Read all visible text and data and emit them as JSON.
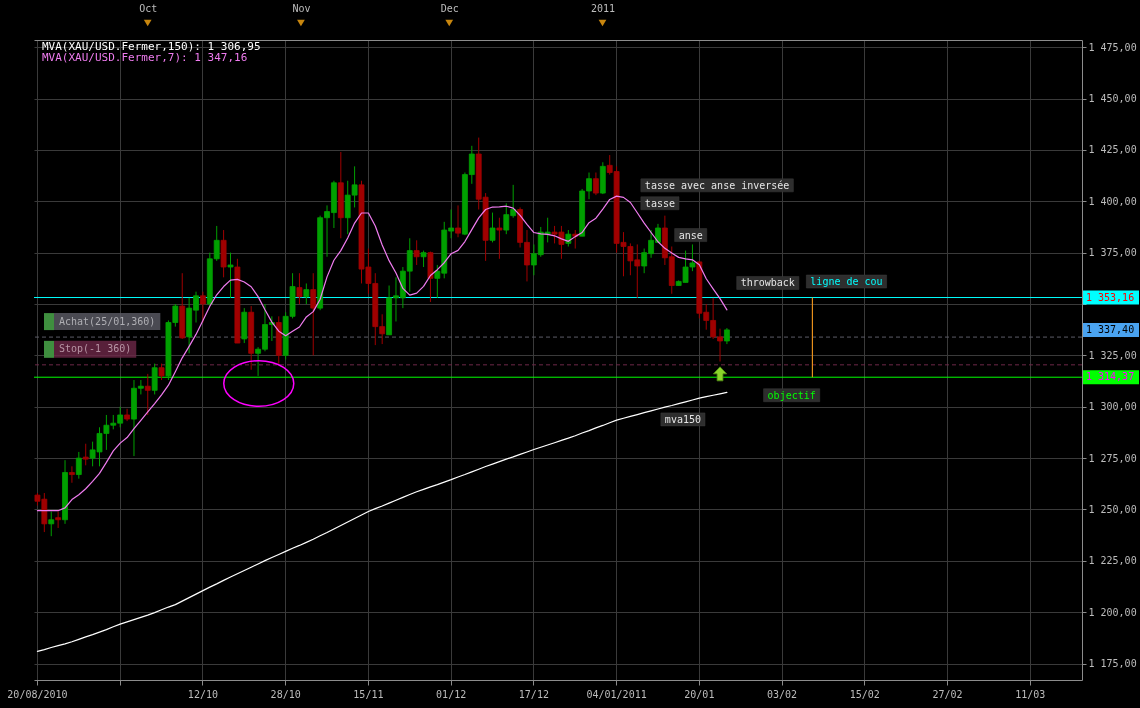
{
  "chart_data": {
    "type": "candlestick",
    "categories": [
      "20/08/2010",
      null,
      null,
      null,
      null,
      null,
      null,
      null,
      null,
      null,
      null,
      null,
      null,
      null,
      null,
      null,
      null,
      null,
      null,
      null,
      null,
      null,
      null,
      null,
      "12/10",
      null,
      null,
      null,
      null,
      null,
      null,
      null,
      null,
      null,
      null,
      null,
      "28/10",
      null,
      null,
      null,
      null,
      null,
      null,
      null,
      null,
      null,
      null,
      null,
      "15/11",
      null,
      null,
      null,
      null,
      null,
      null,
      null,
      null,
      null,
      null,
      null,
      "01/12",
      null,
      null,
      null,
      null,
      null,
      null,
      null,
      null,
      null,
      null,
      null,
      "17/12",
      null,
      null,
      null,
      null,
      null,
      null,
      null,
      null,
      null,
      null,
      null,
      "04/01/2011",
      null,
      null,
      null,
      null,
      null,
      null,
      null,
      null,
      null,
      null,
      null,
      "20/01",
      null,
      null,
      null,
      null,
      null,
      null,
      null,
      null,
      null,
      null,
      null,
      "03/02",
      null,
      null,
      null,
      null,
      null,
      null,
      null,
      null,
      null,
      null,
      null,
      "15/02",
      null,
      null,
      null,
      null,
      null,
      null,
      null,
      null,
      null,
      null,
      null,
      "27/02",
      null,
      null,
      null,
      null,
      null,
      null,
      null,
      null,
      null,
      null,
      null,
      "11/03",
      null,
      null,
      null,
      null,
      null,
      null,
      null
    ],
    "ohlc": [
      [
        1257,
        1258,
        1252,
        1254
      ],
      [
        1255,
        1258,
        1239,
        1243
      ],
      [
        1243,
        1249,
        1237,
        1245
      ],
      [
        1246,
        1249,
        1241,
        1245
      ],
      [
        1245,
        1274,
        1243,
        1268
      ],
      [
        1268,
        1271,
        1263,
        1267
      ],
      [
        1267,
        1278,
        1265,
        1275
      ],
      [
        1275.5,
        1282,
        1271.5,
        1274.5
      ],
      [
        1275,
        1283,
        1271,
        1279
      ],
      [
        1278,
        1290,
        1271,
        1287
      ],
      [
        1287,
        1296,
        1279,
        1291
      ],
      [
        1291,
        1296,
        1289,
        1292
      ],
      [
        1292,
        1300,
        1290,
        1296
      ],
      [
        1296,
        1299,
        1293,
        1294
      ],
      [
        1294,
        1313,
        1276,
        1309
      ],
      [
        1309,
        1313,
        1306,
        1310
      ],
      [
        1310,
        1316,
        1296,
        1308
      ],
      [
        1308,
        1321,
        1306,
        1319
      ],
      [
        1319,
        1321,
        1313,
        1315
      ],
      [
        1315,
        1342,
        1313,
        1341
      ],
      [
        1341,
        1350,
        1339,
        1349
      ],
      [
        1349,
        1365,
        1333,
        1333.5
      ],
      [
        1334,
        1353,
        1326,
        1348
      ],
      [
        1347,
        1356,
        1341,
        1354
      ],
      [
        1354,
        1356,
        1341,
        1350
      ],
      [
        1350,
        1375,
        1349,
        1372
      ],
      [
        1372,
        1388,
        1371,
        1381
      ],
      [
        1381,
        1386,
        1363,
        1368
      ],
      [
        1368,
        1375,
        1353,
        1369
      ],
      [
        1368,
        1372,
        1331,
        1331
      ],
      [
        1333,
        1348,
        1331,
        1346
      ],
      [
        1346,
        1349,
        1318,
        1326
      ],
      [
        1326,
        1329,
        1315,
        1328
      ],
      [
        1328,
        1350,
        1327,
        1340
      ],
      [
        1340,
        1344,
        1332,
        1341
      ],
      [
        1341,
        1344,
        1321,
        1325
      ],
      [
        1325,
        1346,
        1323,
        1344
      ],
      [
        1344,
        1365,
        1343,
        1358.5
      ],
      [
        1358,
        1365,
        1350,
        1353.5
      ],
      [
        1353.5,
        1360,
        1350,
        1357
      ],
      [
        1357,
        1365,
        1325,
        1348
      ],
      [
        1348,
        1393,
        1347,
        1392
      ],
      [
        1392,
        1398,
        1373,
        1395
      ],
      [
        1394.5,
        1410,
        1387,
        1409
      ],
      [
        1409,
        1424,
        1382,
        1392
      ],
      [
        1392,
        1410,
        1384,
        1403
      ],
      [
        1403,
        1417,
        1397,
        1408
      ],
      [
        1408,
        1410,
        1360,
        1367
      ],
      [
        1368,
        1377,
        1355,
        1360
      ],
      [
        1360,
        1365,
        1330,
        1339
      ],
      [
        1339,
        1345,
        1330.5,
        1335.5
      ],
      [
        1335,
        1359,
        1335,
        1353
      ],
      [
        1353,
        1363,
        1341.5,
        1354
      ],
      [
        1353,
        1368,
        1348,
        1366
      ],
      [
        1366,
        1382,
        1356,
        1376
      ],
      [
        1376,
        1381,
        1369,
        1373
      ],
      [
        1373,
        1376,
        1368,
        1375
      ],
      [
        1375,
        1375.5,
        1351,
        1362.5
      ],
      [
        1362.5,
        1369,
        1353,
        1366
      ],
      [
        1365,
        1390,
        1362.5,
        1386
      ],
      [
        1385.5,
        1396,
        1382,
        1387
      ],
      [
        1387,
        1398,
        1382.5,
        1384.5
      ],
      [
        1384,
        1414,
        1383.5,
        1413
      ],
      [
        1413,
        1427,
        1408.5,
        1423
      ],
      [
        1423,
        1431,
        1396,
        1401
      ],
      [
        1402,
        1404,
        1371,
        1381
      ],
      [
        1381,
        1394.5,
        1380,
        1387
      ],
      [
        1387,
        1392,
        1372,
        1386
      ],
      [
        1386,
        1399,
        1384,
        1393.5
      ],
      [
        1393,
        1408,
        1392,
        1396
      ],
      [
        1396,
        1397,
        1377.5,
        1380
      ],
      [
        1380,
        1386,
        1361,
        1369
      ],
      [
        1369,
        1379,
        1364,
        1374.5
      ],
      [
        1374,
        1387.5,
        1373,
        1385
      ],
      [
        1384,
        1392,
        1380,
        1385
      ],
      [
        1385,
        1388,
        1379.5,
        1384
      ],
      [
        1385,
        1388,
        1372,
        1379
      ],
      [
        1379.5,
        1386,
        1378,
        1384
      ],
      [
        1384,
        1386,
        1377,
        1383
      ],
      [
        1383,
        1406,
        1383,
        1405
      ],
      [
        1405,
        1414,
        1401,
        1411
      ],
      [
        1411,
        1414,
        1403,
        1404
      ],
      [
        1404,
        1419,
        1403.5,
        1417
      ],
      [
        1417.5,
        1422.5,
        1413,
        1414
      ],
      [
        1414.5,
        1417,
        1375,
        1379.5
      ],
      [
        1380,
        1385,
        1363.5,
        1378
      ],
      [
        1378,
        1379.5,
        1364,
        1371
      ],
      [
        1371.5,
        1379,
        1353,
        1368.5
      ],
      [
        1368.5,
        1377,
        1365,
        1375
      ],
      [
        1374.5,
        1386,
        1372.5,
        1381
      ],
      [
        1380,
        1389,
        1380,
        1387
      ],
      [
        1387,
        1393,
        1369,
        1372.5
      ],
      [
        1373,
        1378,
        1355,
        1359
      ],
      [
        1359,
        1361.5,
        1359,
        1361
      ],
      [
        1360.5,
        1376,
        1360.5,
        1368
      ],
      [
        1368,
        1379,
        1366,
        1370
      ],
      [
        1370.5,
        1371,
        1343,
        1345.5
      ],
      [
        1346,
        1350,
        1337.5,
        1342
      ],
      [
        1342,
        1353,
        1333,
        1334
      ],
      [
        1334,
        1338,
        1322,
        1332
      ],
      [
        1332,
        1338.3,
        1330.5,
        1337.4
      ],
      null,
      null,
      null,
      null,
      null,
      null,
      null,
      null,
      null,
      null,
      null,
      null,
      null,
      null,
      null,
      null,
      null,
      null,
      null,
      null,
      null,
      null,
      null,
      null,
      null,
      null,
      null,
      null,
      null,
      null,
      null,
      null,
      null,
      null,
      null,
      null,
      null,
      null,
      null,
      null,
      null,
      null,
      null,
      null,
      null,
      null,
      null,
      null,
      null,
      null,
      null
    ],
    "series": [
      {
        "type": "line",
        "name": "MVA(XAU/USD.Fermer,150): 1 306,95",
        "color": "#ffffff",
        "values": [
          1180.9,
          1181.8,
          1182.8,
          1183.7,
          1184.6,
          1185.6,
          1186.8,
          1188,
          1189.1,
          1190.3,
          1191.5,
          1192.9,
          1194.2,
          1195.3,
          1196.4,
          1197.5,
          1198.6,
          1199.8,
          1201.2,
          1202.5,
          1203.7,
          1205.4,
          1207.1,
          1208.8,
          1210.5,
          1212.2,
          1213.8,
          1215.5,
          1217.1,
          1218.7,
          1220.3,
          1221.9,
          1223.5,
          1225.1,
          1226.6,
          1228.1,
          1229.6,
          1231.1,
          1232.5,
          1234,
          1235.5,
          1237.2,
          1238.8,
          1240.5,
          1242.2,
          1243.9,
          1245.6,
          1247.3,
          1249,
          1250.4,
          1251.7,
          1253.1,
          1254.5,
          1255.9,
          1257.3,
          1258.6,
          1259.8,
          1261,
          1262.1,
          1263.3,
          1264.5,
          1265.8,
          1267,
          1268.3,
          1269.6,
          1270.9,
          1272.1,
          1273.3,
          1274.5,
          1275.6,
          1276.8,
          1278,
          1279.2,
          1280.3,
          1281.4,
          1282.5,
          1283.6,
          1284.7,
          1285.9,
          1287.2,
          1288.4,
          1289.7,
          1290.9,
          1292.2,
          1293.5,
          1294.4,
          1295.3,
          1296.2,
          1297.1,
          1298,
          1298.9,
          1299.8,
          1300.6,
          1301.5,
          1302.4,
          1303.3,
          1304.2,
          1304.9,
          1305.6,
          1306.3,
          1306.95,
          null,
          null,
          null,
          null,
          null,
          null,
          null,
          null,
          null,
          null,
          null,
          null,
          null,
          null,
          null,
          null,
          null,
          null,
          null,
          null,
          null,
          null,
          null,
          null,
          null,
          null,
          null,
          null,
          null,
          null,
          null,
          null,
          null,
          null,
          null,
          null,
          null,
          null,
          null,
          null,
          null,
          null,
          null,
          null,
          null,
          null,
          null,
          null,
          null,
          null,
          null
        ]
      },
      {
        "type": "line",
        "name": "MVA(XAU/USD.Fermer,7): 1 347,16",
        "color": "#f07cf0",
        "values": [
          1249.4,
          1249.4,
          1249.4,
          1249.4,
          1250.8,
          1254.8,
          1257.2,
          1260.1,
          1263.7,
          1267.6,
          1272.9,
          1278.5,
          1282.3,
          1285,
          1289.3,
          1293.4,
          1297.5,
          1301.5,
          1305.8,
          1310.5,
          1317,
          1323.8,
          1329.4,
          1335.2,
          1342,
          1348.9,
          1354.5,
          1358.5,
          1361.6,
          1362,
          1360.7,
          1358.4,
          1353.6,
          1347.2,
          1341.2,
          1336.8,
          1334.5,
          1336.7,
          1338.8,
          1343.7,
          1346.3,
          1352.3,
          1363.2,
          1371.3,
          1376,
          1382.1,
          1389.4,
          1394.3,
          1394.3,
          1388,
          1378.7,
          1371.1,
          1365.1,
          1357.6,
          1354.3,
          1355.3,
          1358.6,
          1363.9,
          1366.7,
          1370.1,
          1374.5,
          1376.1,
          1380.4,
          1386.2,
          1391.9,
          1396,
          1397.2,
          1397.3,
          1397.6,
          1396.7,
          1393.1,
          1388.8,
          1384.8,
          1384.1,
          1383.9,
          1383.2,
          1381.7,
          1380.5,
          1382.8,
          1384.8,
          1389.6,
          1391.8,
          1396.2,
          1400.9,
          1402.5,
          1401.9,
          1399.4,
          1394.4,
          1389.4,
          1384.8,
          1380.3,
          1377.1,
          1374.8,
          1372.7,
          1372,
          1371.5,
          1369.1,
          1362.3,
          1357.4,
          1352.6,
          1347.16,
          null,
          null,
          null,
          null,
          null,
          null,
          null,
          null,
          null,
          null,
          null,
          null,
          null,
          null,
          null,
          null,
          null,
          null,
          null,
          null,
          null,
          null,
          null,
          null,
          null,
          null,
          null,
          null,
          null,
          null,
          null,
          null,
          null,
          null,
          null,
          null,
          null,
          null,
          null,
          null,
          null,
          null,
          null,
          null,
          null,
          null,
          null,
          null,
          null,
          null,
          null
        ]
      }
    ],
    "x2lim": [
      "2010-09-08",
      "2011-04-08"
    ],
    "x2ticks": [
      {
        "value": "2010-10-01",
        "label": "Oct"
      },
      {
        "value": "2010-11-01",
        "label": "Nov"
      },
      {
        "value": "2010-12-01",
        "label": "Dec"
      },
      {
        "value": "2011-01-01",
        "label": "2011"
      }
    ],
    "ylim": [
      1167,
      1478.5
    ],
    "yticks": [
      {
        "value": 1175,
        "label": "1 175,00"
      },
      {
        "value": 1200,
        "label": "1 200,00"
      },
      {
        "value": 1225,
        "label": "1 225,00"
      },
      {
        "value": 1250,
        "label": "1 250,00"
      },
      {
        "value": 1275,
        "label": "1 275,00"
      },
      {
        "value": 1300,
        "label": "1 300,00"
      },
      {
        "value": 1325,
        "label": "1 325,00"
      },
      {
        "value": 1350,
        "label": null
      },
      {
        "value": 1375,
        "label": "1 375,00"
      },
      {
        "value": 1400,
        "label": "1 400,00"
      },
      {
        "value": 1425,
        "label": "1 425,00"
      },
      {
        "value": 1450,
        "label": "1 450,00"
      },
      {
        "value": 1475,
        "label": "1 475,00"
      }
    ],
    "ref_lines": [
      {
        "axis": "y",
        "value": 1353.16,
        "label": "1 353,16",
        "color": "#00ffff"
      },
      {
        "axis": "y",
        "value": 1333.9,
        "label": "Achat(25/01,360)",
        "color": "#5c5c66",
        "line_style": "dashed"
      },
      {
        "axis": "y",
        "value": 1320.4,
        "label": "Stop(-1 360)",
        "color": "#6e2848",
        "line_style": "dashed"
      },
      {
        "axis": "y",
        "value": 1314.37,
        "label": "1 314,37",
        "color": "#00ff00"
      }
    ],
    "annotations": [
      "tasse avec anse inversée",
      "tasse",
      "anse",
      "throwback",
      {
        "text": "ligne de cou",
        "y": 1353.16
      },
      {
        "text": "objectif",
        "y": 1314.37
      },
      "mva150",
      "1 337,40"
    ],
    "grid": true,
    "legend": "top left"
  }
}
